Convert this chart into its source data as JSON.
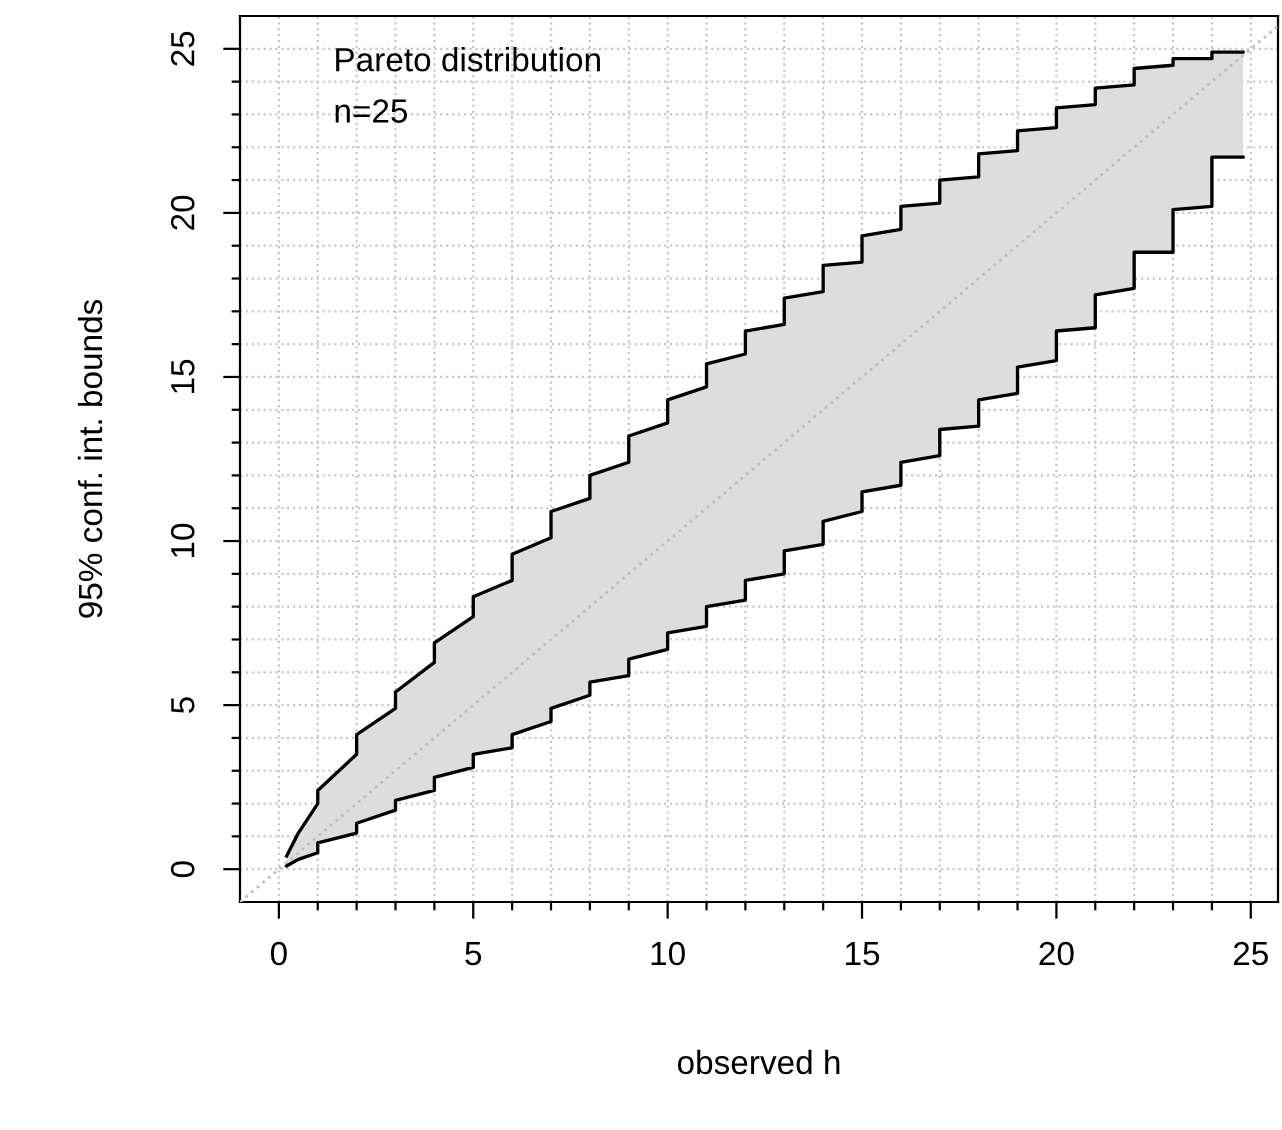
{
  "chart_data": {
    "type": "line",
    "xlabel": "observed h",
    "ylabel": "95% conf. int. bounds",
    "annotations": [
      "Pareto distribution",
      "n=25"
    ],
    "xlim": [
      -1.0,
      25.7
    ],
    "ylim": [
      -1.0,
      26.0
    ],
    "xticks": [
      0,
      {
        "value": 1,
        "label": null
      },
      {
        "value": 2,
        "label": null
      },
      {
        "value": 3,
        "label": null
      },
      {
        "value": 4,
        "label": null
      },
      5,
      {
        "value": 6,
        "label": null
      },
      {
        "value": 7,
        "label": null
      },
      {
        "value": 8,
        "label": null
      },
      {
        "value": 9,
        "label": null
      },
      10,
      {
        "value": 11,
        "label": null
      },
      {
        "value": 12,
        "label": null
      },
      {
        "value": 13,
        "label": null
      },
      {
        "value": 14,
        "label": null
      },
      15,
      {
        "value": 16,
        "label": null
      },
      {
        "value": 17,
        "label": null
      },
      {
        "value": 18,
        "label": null
      },
      {
        "value": 19,
        "label": null
      },
      20,
      {
        "value": 21,
        "label": null
      },
      {
        "value": 22,
        "label": null
      },
      {
        "value": 23,
        "label": null
      },
      {
        "value": 24,
        "label": null
      },
      25
    ],
    "yticks": [
      0,
      {
        "value": 1,
        "label": null
      },
      {
        "value": 2,
        "label": null
      },
      {
        "value": 3,
        "label": null
      },
      {
        "value": 4,
        "label": null
      },
      5,
      {
        "value": 6,
        "label": null
      },
      {
        "value": 7,
        "label": null
      },
      {
        "value": 8,
        "label": null
      },
      {
        "value": 9,
        "label": null
      },
      10,
      {
        "value": 11,
        "label": null
      },
      {
        "value": 12,
        "label": null
      },
      {
        "value": 13,
        "label": null
      },
      {
        "value": 14,
        "label": null
      },
      15,
      {
        "value": 16,
        "label": null
      },
      {
        "value": 17,
        "label": null
      },
      {
        "value": 18,
        "label": null
      },
      {
        "value": 19,
        "label": null
      },
      20,
      {
        "value": 21,
        "label": null
      },
      {
        "value": 22,
        "label": null
      },
      {
        "value": 23,
        "label": null
      },
      {
        "value": 24,
        "label": null
      },
      25
    ],
    "grid": true,
    "series": [
      {
        "color": "#bebebe",
        "line_style": "dotted",
        "x": [
          -1.0,
          0.2,
          0.5,
          1,
          1,
          2,
          2,
          3,
          3,
          4,
          4,
          5,
          5,
          6,
          6,
          7,
          7,
          8,
          8,
          9,
          9,
          10,
          10,
          11,
          11,
          12,
          12,
          13,
          13,
          14,
          14,
          15,
          15,
          16,
          16,
          17,
          17,
          18,
          18,
          19,
          19,
          20,
          20,
          21,
          21,
          22,
          22,
          23,
          23,
          24,
          24,
          24.8,
          25.7
        ],
        "values": [
          -1.0,
          0.2,
          0.5,
          1,
          1,
          2,
          2,
          3,
          3,
          4,
          4,
          5,
          5,
          6,
          6,
          7,
          7,
          8,
          8,
          9,
          9,
          10,
          10,
          11,
          11,
          12,
          12,
          13,
          13,
          14,
          14,
          15,
          15,
          16,
          16,
          17,
          17,
          18,
          18,
          19,
          19,
          20,
          20,
          21,
          21,
          22,
          22,
          23,
          23,
          24,
          24,
          24.8,
          25.7
        ],
        "upper": [
          null,
          0.4,
          1.1,
          2.0,
          2.4,
          3.5,
          4.1,
          4.9,
          5.4,
          6.3,
          6.9,
          7.7,
          8.3,
          8.8,
          9.6,
          10.1,
          10.9,
          11.3,
          12.0,
          12.4,
          13.2,
          13.6,
          14.3,
          14.7,
          15.4,
          15.7,
          16.4,
          16.6,
          17.4,
          17.6,
          18.4,
          18.5,
          19.3,
          19.5,
          20.2,
          20.3,
          21.0,
          21.1,
          21.8,
          21.9,
          22.5,
          22.6,
          23.2,
          23.3,
          23.8,
          23.9,
          24.4,
          24.5,
          24.7,
          24.7,
          24.9,
          24.9,
          null
        ],
        "lower": [
          null,
          0.1,
          0.3,
          0.5,
          0.8,
          1.1,
          1.4,
          1.8,
          2.1,
          2.4,
          2.8,
          3.1,
          3.5,
          3.7,
          4.1,
          4.5,
          4.9,
          5.3,
          5.7,
          5.9,
          6.4,
          6.7,
          7.2,
          7.4,
          8.0,
          8.2,
          8.8,
          9.0,
          9.7,
          9.9,
          10.6,
          10.9,
          11.5,
          11.7,
          12.4,
          12.6,
          13.4,
          13.5,
          14.3,
          14.5,
          15.3,
          15.5,
          16.4,
          16.5,
          17.5,
          17.7,
          18.8,
          18.8,
          20.1,
          20.2,
          21.7,
          21.7,
          null
        ]
      },
      {
        "color": "#000000",
        "x": [
          0.2,
          0.5,
          1,
          1,
          2,
          2,
          3,
          3,
          4,
          4,
          5,
          5,
          6,
          6,
          7,
          7,
          8,
          8,
          9,
          9,
          10,
          10,
          11,
          11,
          12,
          12,
          13,
          13,
          14,
          14,
          15,
          15,
          16,
          16,
          17,
          17,
          18,
          18,
          19,
          19,
          20,
          20,
          21,
          21,
          22,
          22,
          23,
          23,
          24,
          24,
          24.8
        ],
        "values": [
          0.4,
          1.1,
          2.0,
          2.4,
          3.5,
          4.1,
          4.9,
          5.4,
          6.3,
          6.9,
          7.7,
          8.3,
          8.8,
          9.6,
          10.1,
          10.9,
          11.3,
          12.0,
          12.4,
          13.2,
          13.6,
          14.3,
          14.7,
          15.4,
          15.7,
          16.4,
          16.6,
          17.4,
          17.6,
          18.4,
          18.5,
          19.3,
          19.5,
          20.2,
          20.3,
          21.0,
          21.1,
          21.8,
          21.9,
          22.5,
          22.6,
          23.2,
          23.3,
          23.8,
          23.9,
          24.4,
          24.5,
          24.7,
          24.7,
          24.9,
          24.9
        ]
      },
      {
        "color": "#000000",
        "x": [
          0.2,
          0.5,
          1,
          1,
          2,
          2,
          3,
          3,
          4,
          4,
          5,
          5,
          6,
          6,
          7,
          7,
          8,
          8,
          9,
          9,
          10,
          10,
          11,
          11,
          12,
          12,
          13,
          13,
          14,
          14,
          15,
          15,
          16,
          16,
          17,
          17,
          18,
          18,
          19,
          19,
          20,
          20,
          21,
          21,
          22,
          22,
          23,
          23,
          24,
          24,
          24.8
        ],
        "values": [
          0.1,
          0.3,
          0.5,
          0.8,
          1.1,
          1.4,
          1.8,
          2.1,
          2.4,
          2.8,
          3.1,
          3.5,
          3.7,
          4.1,
          4.5,
          4.9,
          5.3,
          5.7,
          5.9,
          6.4,
          6.7,
          7.2,
          7.4,
          8.0,
          8.2,
          8.8,
          9.0,
          9.7,
          9.9,
          10.6,
          10.9,
          11.5,
          11.7,
          12.4,
          12.6,
          13.4,
          13.5,
          14.3,
          14.5,
          15.3,
          15.5,
          16.4,
          16.5,
          17.5,
          17.7,
          18.8,
          18.8,
          20.1,
          20.2,
          21.7,
          21.7
        ]
      }
    ]
  }
}
